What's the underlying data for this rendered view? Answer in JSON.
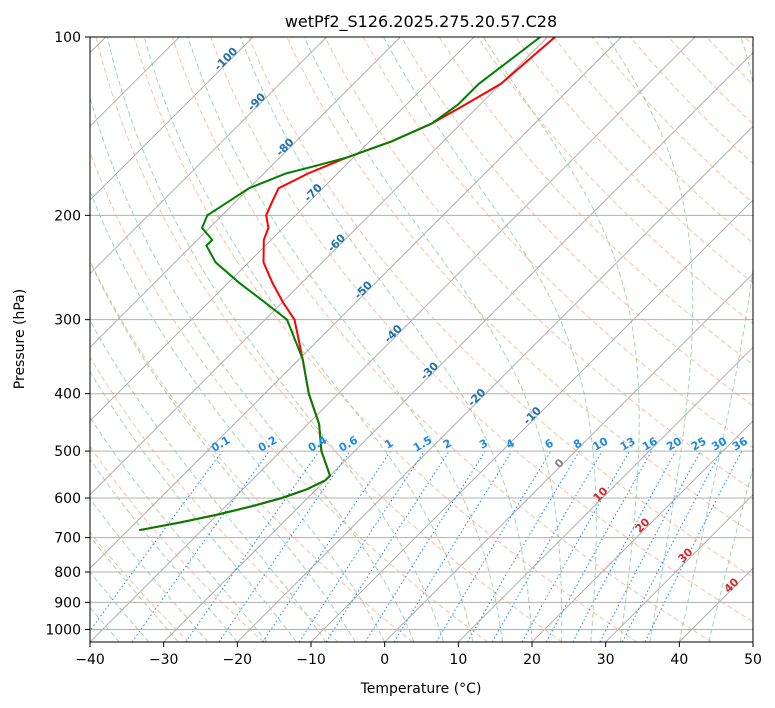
{
  "chart_data": {
    "type": "line",
    "title": "wetPf2_S126.2025.275.20.57.C28",
    "xlabel": "Temperature (°C)",
    "ylabel": "Pressure (hPa)",
    "xlim": [
      -40,
      50
    ],
    "ylim": [
      1050,
      100
    ],
    "y_scale": "log",
    "grid": true,
    "x_ticks": [
      -40,
      -30,
      -20,
      -10,
      0,
      10,
      20,
      30,
      40,
      50
    ],
    "y_ticks": [
      100,
      200,
      300,
      400,
      500,
      600,
      700,
      800,
      900,
      1000
    ],
    "colors": {
      "temperature": "#ff0000",
      "dewpoint": "#008000",
      "isotherm": "#b0b0b0",
      "dry_adiabat": "#f4a582",
      "moist_adiabat": "#92c5a0",
      "mixing_ratio": "#1e88e5",
      "moist_label": "#1f6fb0",
      "dry_label": "#d62728",
      "zero_label": "#808080"
    },
    "series": [
      {
        "pressure": [
          100,
          120,
          130,
          140,
          150,
          160,
          170,
          180,
          190,
          200,
          210,
          220,
          240,
          260,
          280,
          300,
          350,
          400,
          450,
          500,
          550,
          560,
          580,
          600,
          620,
          640,
          660,
          680
        ],
        "temperature": [
          -59,
          -60,
          -62,
          -64,
          -67,
          -71,
          -74,
          -76,
          -75,
          -74,
          -72,
          -71,
          -68,
          -64,
          -60,
          -56,
          -49.5,
          -44,
          -38.5,
          -34.5,
          -30,
          -30,
          -31.3,
          -33.5,
          -36.5,
          -40,
          -44,
          -48.5
        ]
      },
      {
        "pressure": [
          100,
          120,
          130,
          140,
          150,
          160,
          165,
          170,
          180,
          190,
          200,
          210,
          220,
          225,
          240,
          260,
          280,
          300,
          350,
          400,
          450,
          500,
          550,
          560,
          580,
          600,
          620,
          640,
          660,
          680
        ],
        "temperature": [
          -61,
          -63,
          -63,
          -64,
          -67,
          -71,
          -74,
          -77,
          -80,
          -81,
          -82,
          -81,
          -78,
          -78,
          -74.5,
          -68.5,
          -62.5,
          -57,
          -49.5,
          -44,
          -38.5,
          -34.5,
          -30,
          -30,
          -31.3,
          -33.5,
          -36.5,
          -40,
          -44,
          -48.5
        ]
      }
    ],
    "moist_adiabat_labels": [
      "-100",
      "-90",
      "-80",
      "-70",
      "-60",
      "-50",
      "-40",
      "-30",
      "-20",
      "-10"
    ],
    "moist_adiabat_values": [
      -100,
      -90,
      -80,
      -70,
      -60,
      -50,
      -40,
      -30,
      -20,
      -10
    ],
    "zero_label": "0",
    "dry_adiabat_labels": [
      "10",
      "20",
      "30",
      "40"
    ],
    "dry_adiabat_values": [
      10,
      20,
      30,
      40
    ],
    "mixing_ratio_labels": [
      "0.1",
      "0.2",
      "0.4",
      "0.6",
      "1",
      "1.5",
      "2",
      "3",
      "4",
      "6",
      "8",
      "10",
      "13",
      "16",
      "20",
      "25",
      "30",
      "36"
    ],
    "mixing_ratio_values": [
      0.1,
      0.2,
      0.4,
      0.6,
      1,
      1.5,
      2,
      3,
      4,
      6,
      8,
      10,
      13,
      16,
      20,
      25,
      30,
      36
    ]
  }
}
